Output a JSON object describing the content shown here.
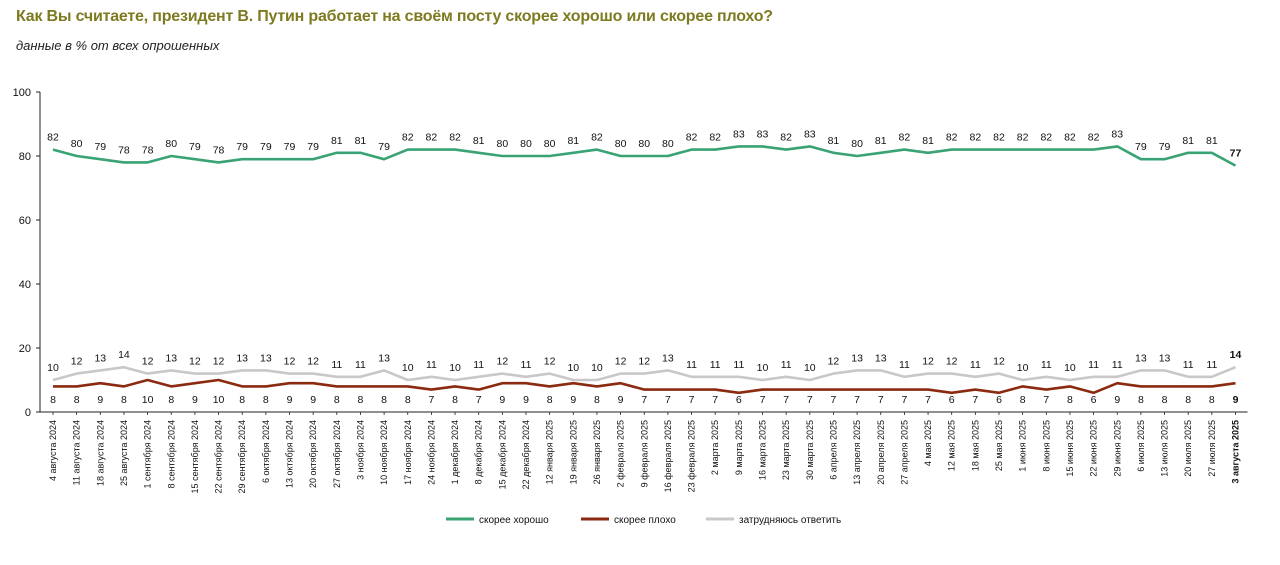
{
  "title": "Как Вы считаете, президент В. Путин работает на своём посту скорее хорошо или скорее плохо?",
  "subtitle": "данные в % от всех опрошенных",
  "chart_data": {
    "type": "line",
    "title": "Как Вы считаете, президент В. Путин работает на своём посту скорее хорошо или скорее плохо?",
    "subtitle": "данные в % от всех опрошенных",
    "ylim": [
      0,
      100
    ],
    "yticks": [
      0,
      20,
      40,
      60,
      80,
      100
    ],
    "grid": false,
    "legend_position": "bottom",
    "x": [
      "4 августа 2024",
      "11 августа 2024",
      "18 августа 2024",
      "25 августа 2024",
      "1 сентября 2024",
      "8 сентября 2024",
      "15 сентября 2024",
      "22 сентября 2024",
      "29 сентября 2024",
      "6 октября 2024",
      "13 октября 2024",
      "20 октября 2024",
      "27 октября 2024",
      "3 ноября 2024",
      "10 ноября 2024",
      "17 ноября 2024",
      "24 ноября 2024",
      "1 декабря 2024",
      "8 декабря 2024",
      "15 декабря 2024",
      "22 декабря 2024",
      "12 января 2025",
      "19 января 2025",
      "26 января 2025",
      "2 февраля 2025",
      "9 февраля 2025",
      "16 февраля 2025",
      "23 февраля 2025",
      "2 марта 2025",
      "9 марта 2025",
      "16 марта 2025",
      "23 марта 2025",
      "30 марта 2025",
      "6 апреля 2025",
      "13 апреля 2025",
      "20 апреля 2025",
      "27 апреля 2025",
      "4 мая 2025",
      "12 мая 2025",
      "18 мая 2025",
      "25 мая 2025",
      "1 июня 2025",
      "8 июня 2025",
      "15 июня 2025",
      "22 июня 2025",
      "29 июня 2025",
      "6 июля 2025",
      "13 июля 2025",
      "20 июля 2025",
      "27 июля 2025",
      "3 августа 2025"
    ],
    "series": [
      {
        "name": "скорее хорошо",
        "color": "#3aa374",
        "values": [
          82,
          80,
          79,
          78,
          78,
          80,
          79,
          78,
          79,
          79,
          79,
          79,
          81,
          81,
          79,
          82,
          82,
          82,
          81,
          80,
          80,
          80,
          81,
          82,
          80,
          80,
          80,
          82,
          82,
          83,
          83,
          82,
          83,
          81,
          80,
          81,
          82,
          81,
          82,
          82,
          82,
          82,
          82,
          82,
          82,
          83,
          79,
          79,
          81,
          81,
          77
        ]
      },
      {
        "name": "скорее плохо",
        "color": "#8b2a10",
        "values": [
          8,
          8,
          9,
          8,
          10,
          8,
          9,
          10,
          8,
          8,
          9,
          9,
          8,
          8,
          8,
          8,
          7,
          8,
          7,
          9,
          9,
          8,
          9,
          8,
          9,
          7,
          7,
          7,
          7,
          6,
          7,
          7,
          7,
          7,
          7,
          7,
          7,
          7,
          6,
          7,
          6,
          8,
          7,
          8,
          6,
          9,
          8,
          8,
          8,
          8,
          9
        ]
      },
      {
        "name": "затрудняюсь ответить",
        "color": "#c8c8c8",
        "values": [
          10,
          12,
          13,
          14,
          12,
          13,
          12,
          12,
          13,
          13,
          12,
          12,
          11,
          11,
          13,
          10,
          11,
          10,
          11,
          12,
          11,
          12,
          10,
          10,
          12,
          12,
          13,
          11,
          11,
          11,
          10,
          11,
          10,
          12,
          13,
          13,
          11,
          12,
          12,
          11,
          12,
          10,
          11,
          10,
          11,
          11,
          13,
          13,
          11,
          11,
          14
        ]
      }
    ]
  }
}
